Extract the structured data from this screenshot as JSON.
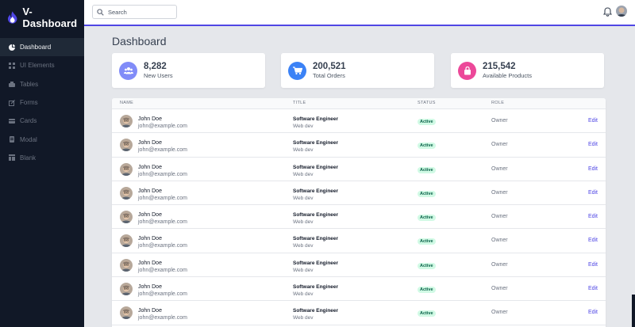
{
  "brand": {
    "name": "V-Dashboard"
  },
  "sidebar": {
    "items": [
      {
        "label": "Dashboard",
        "icon": "dashboard-icon",
        "active": true
      },
      {
        "label": "UI Elements",
        "icon": "grid-icon",
        "active": false
      },
      {
        "label": "Tables",
        "icon": "table-icon",
        "active": false
      },
      {
        "label": "Forms",
        "icon": "form-icon",
        "active": false
      },
      {
        "label": "Cards",
        "icon": "card-icon",
        "active": false
      },
      {
        "label": "Modal",
        "icon": "modal-icon",
        "active": false
      },
      {
        "label": "Blank",
        "icon": "blank-icon",
        "active": false
      }
    ]
  },
  "header": {
    "search_placeholder": "Search",
    "accent": "#4f46e5"
  },
  "page": {
    "title": "Dashboard"
  },
  "stats": [
    {
      "value": "8,282",
      "label": "New Users",
      "color": "#818cf8",
      "icon": "users-icon"
    },
    {
      "value": "200,521",
      "label": "Total Orders",
      "color": "#3b82f6",
      "icon": "cart-icon"
    },
    {
      "value": "215,542",
      "label": "Available Products",
      "color": "#ec4899",
      "icon": "bag-icon"
    }
  ],
  "table": {
    "headers": {
      "name": "NAME",
      "title": "TITLE",
      "status": "STATUS",
      "role": "ROLE"
    },
    "rows": [
      {
        "name": "John Doe",
        "email": "john@example.com",
        "title": "Software Engineer",
        "dept": "Web dev",
        "status": "Active",
        "role": "Owner",
        "action": "Edit"
      },
      {
        "name": "John Doe",
        "email": "john@example.com",
        "title": "Software Engineer",
        "dept": "Web dev",
        "status": "Active",
        "role": "Owner",
        "action": "Edit"
      },
      {
        "name": "John Doe",
        "email": "john@example.com",
        "title": "Software Engineer",
        "dept": "Web dev",
        "status": "Active",
        "role": "Owner",
        "action": "Edit"
      },
      {
        "name": "John Doe",
        "email": "john@example.com",
        "title": "Software Engineer",
        "dept": "Web dev",
        "status": "Active",
        "role": "Owner",
        "action": "Edit"
      },
      {
        "name": "John Doe",
        "email": "john@example.com",
        "title": "Software Engineer",
        "dept": "Web dev",
        "status": "Active",
        "role": "Owner",
        "action": "Edit"
      },
      {
        "name": "John Doe",
        "email": "john@example.com",
        "title": "Software Engineer",
        "dept": "Web dev",
        "status": "Active",
        "role": "Owner",
        "action": "Edit"
      },
      {
        "name": "John Doe",
        "email": "john@example.com",
        "title": "Software Engineer",
        "dept": "Web dev",
        "status": "Active",
        "role": "Owner",
        "action": "Edit"
      },
      {
        "name": "John Doe",
        "email": "john@example.com",
        "title": "Software Engineer",
        "dept": "Web dev",
        "status": "Active",
        "role": "Owner",
        "action": "Edit"
      },
      {
        "name": "John Doe",
        "email": "john@example.com",
        "title": "Software Engineer",
        "dept": "Web dev",
        "status": "Active",
        "role": "Owner",
        "action": "Edit"
      }
    ]
  }
}
